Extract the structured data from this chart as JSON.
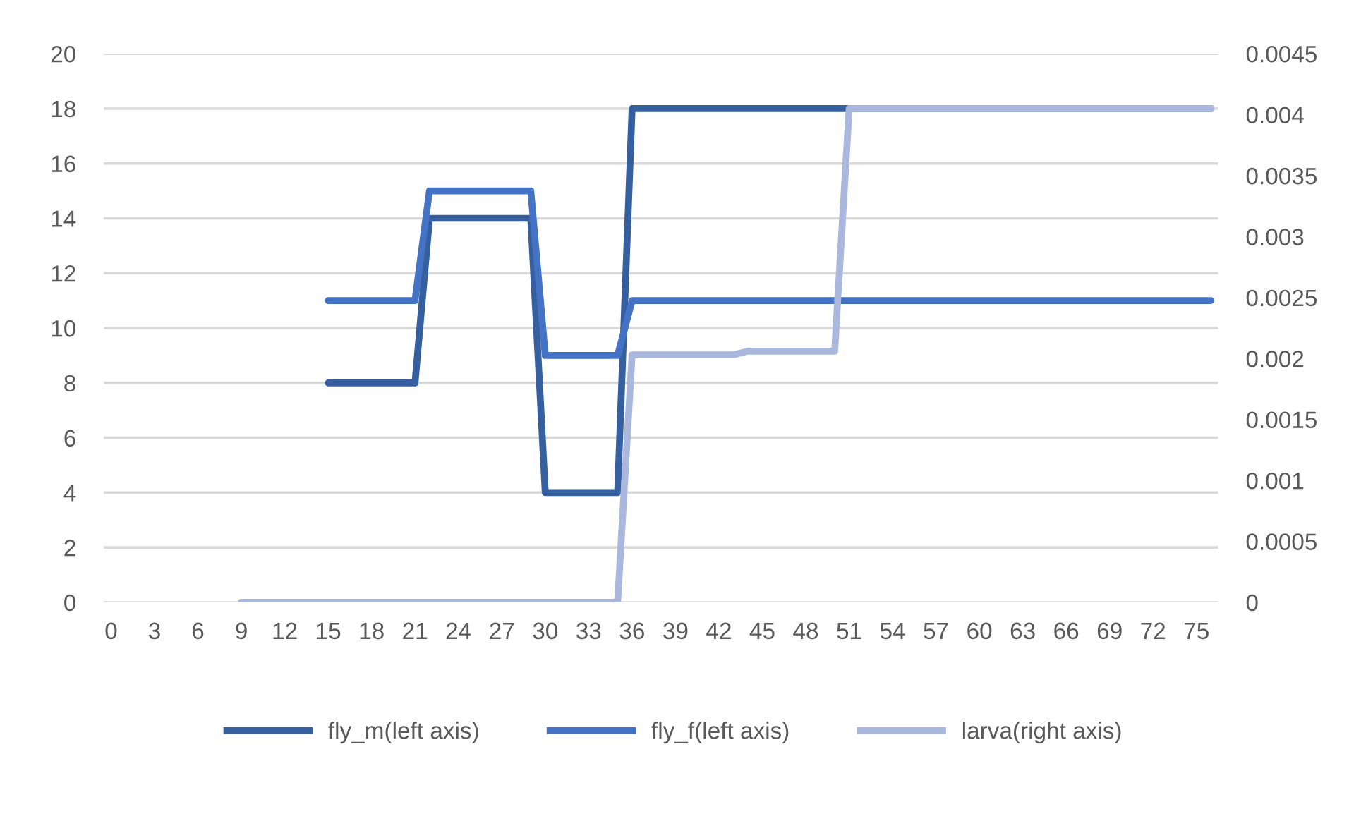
{
  "chart_data": {
    "type": "line",
    "series": [
      {
        "name": "fly_m(left axis)",
        "color": "#355f9f",
        "x": [
          15,
          16,
          17,
          18,
          19,
          20,
          21,
          22,
          23,
          24,
          25,
          26,
          27,
          28,
          29,
          30,
          31,
          32,
          33,
          34,
          35,
          36,
          37,
          38,
          39,
          40,
          41,
          42,
          43,
          44,
          45,
          46,
          47,
          48,
          49,
          50,
          51,
          52,
          53,
          54,
          55,
          56,
          57,
          58,
          59,
          60,
          61,
          62,
          63,
          64,
          65,
          66,
          67,
          68,
          69,
          70,
          71,
          72,
          73,
          74,
          75,
          76
        ],
        "values": [
          8,
          8,
          8,
          8,
          8,
          8,
          8,
          14,
          14,
          14,
          14,
          14,
          14,
          14,
          14,
          4,
          4,
          4,
          4,
          4,
          4,
          18,
          18,
          18,
          18,
          18,
          18,
          18,
          18,
          18,
          18,
          18,
          18,
          18,
          18,
          18,
          18,
          18,
          18,
          18,
          18,
          18,
          18,
          18,
          18,
          18,
          18,
          18,
          18,
          18,
          18,
          18,
          18,
          18,
          18,
          18,
          18,
          18,
          18,
          18,
          18,
          18
        ]
      },
      {
        "name": "fly_f(left axis)",
        "color": "#4472c4",
        "x": [
          15,
          16,
          17,
          18,
          19,
          20,
          21,
          22,
          23,
          24,
          25,
          26,
          27,
          28,
          29,
          30,
          31,
          32,
          33,
          34,
          35,
          36,
          37,
          38,
          39,
          40,
          41,
          42,
          43,
          44,
          45,
          46,
          47,
          48,
          49,
          50,
          51,
          52,
          53,
          54,
          55,
          56,
          57,
          58,
          59,
          60,
          61,
          62,
          63,
          64,
          65,
          66,
          67,
          68,
          69,
          70,
          71,
          72,
          73,
          74,
          75,
          76
        ],
        "values": [
          11,
          11,
          11,
          11,
          11,
          11,
          11,
          15,
          15,
          15,
          15,
          15,
          15,
          15,
          15,
          9,
          9,
          9,
          9,
          9,
          9,
          11,
          11,
          11,
          11,
          11,
          11,
          11,
          11,
          11,
          11,
          11,
          11,
          11,
          11,
          11,
          11,
          11,
          11,
          11,
          11,
          11,
          11,
          11,
          11,
          11,
          11,
          11,
          11,
          11,
          11,
          11,
          11,
          11,
          11,
          11,
          11,
          11,
          11,
          11,
          11,
          11
        ]
      },
      {
        "name": "larva(right axis)",
        "color": "#a9b8dc",
        "axis": "y2",
        "x": [
          9,
          10,
          11,
          12,
          13,
          14,
          15,
          16,
          17,
          18,
          19,
          20,
          21,
          22,
          23,
          24,
          25,
          26,
          27,
          28,
          29,
          30,
          31,
          32,
          33,
          34,
          35,
          36,
          37,
          38,
          39,
          40,
          41,
          42,
          43,
          44,
          45,
          46,
          47,
          48,
          49,
          50,
          51,
          52,
          53,
          54,
          55,
          56,
          57,
          58,
          59,
          60,
          61,
          62,
          63,
          64,
          65,
          66,
          67,
          68,
          69,
          70,
          71,
          72,
          73,
          74,
          75,
          76
        ],
        "values": [
          0,
          0,
          0,
          0,
          0,
          0,
          0,
          0,
          0,
          0,
          0,
          0,
          0,
          0,
          0,
          0,
          0,
          0,
          0,
          0,
          0,
          0,
          0,
          0,
          0,
          0,
          0,
          0.00203,
          0.00203,
          0.00203,
          0.00203,
          0.00203,
          0.00203,
          0.00203,
          0.00203,
          0.00206,
          0.00206,
          0.00206,
          0.00206,
          0.00206,
          0.00206,
          0.00206,
          0.00405,
          0.00405,
          0.00405,
          0.00405,
          0.00405,
          0.00405,
          0.00405,
          0.00405,
          0.00405,
          0.00405,
          0.00405,
          0.00405,
          0.00405,
          0.00405,
          0.00405,
          0.00405,
          0.00405,
          0.00405,
          0.00405,
          0.00405,
          0.00405,
          0.00405,
          0.00405,
          0.00405,
          0.00405,
          0.00405
        ]
      }
    ],
    "xlim": [
      -0.5,
      76.5
    ],
    "xticks": [
      0,
      3,
      6,
      9,
      12,
      15,
      18,
      21,
      24,
      27,
      30,
      33,
      36,
      39,
      42,
      45,
      48,
      51,
      54,
      57,
      60,
      63,
      66,
      69,
      72,
      75
    ],
    "ylim": [
      0,
      20
    ],
    "yticks": [
      0,
      2,
      4,
      6,
      8,
      10,
      12,
      14,
      16,
      18,
      20
    ],
    "y2lim": [
      0,
      0.0045
    ],
    "y2ticks": [
      0,
      0.0005,
      0.001,
      0.0015,
      0.002,
      0.0025,
      0.003,
      0.0035,
      0.004,
      0.0045
    ],
    "grid": "y",
    "legend": "bottom",
    "marker": "none",
    "line_style": "solid"
  }
}
